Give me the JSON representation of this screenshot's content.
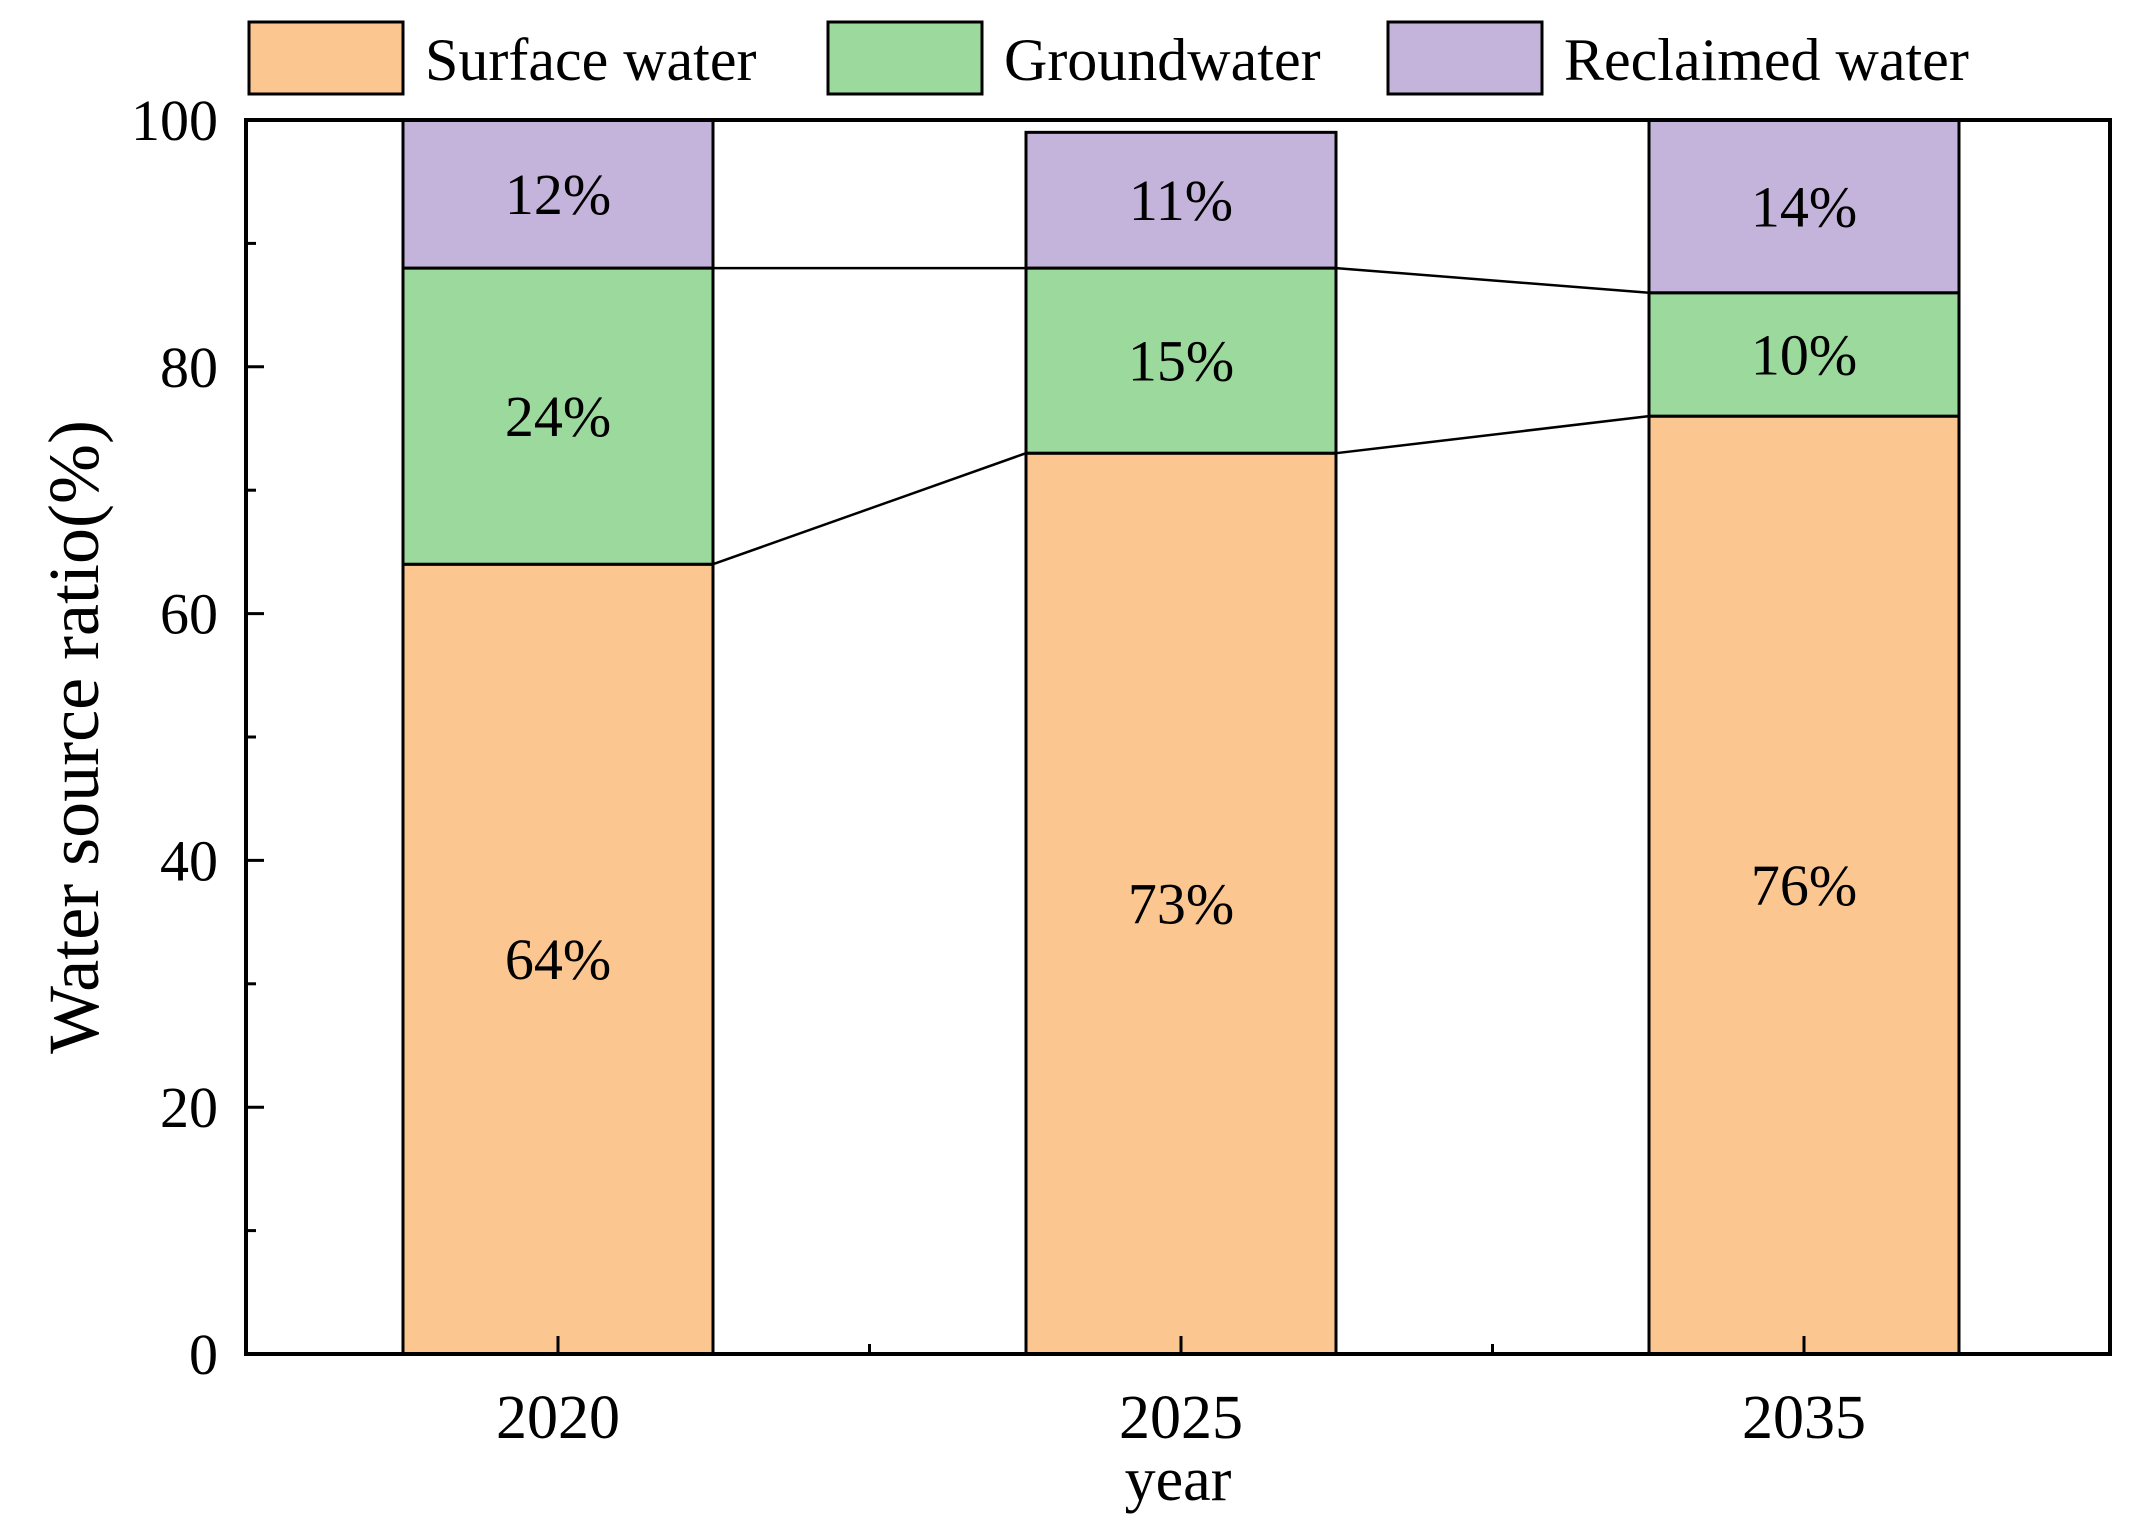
{
  "chart_data": {
    "type": "bar",
    "stacked": true,
    "categories": [
      "2020",
      "2025",
      "2035"
    ],
    "series": [
      {
        "name": "Surface water",
        "values": [
          64,
          73,
          76
        ],
        "labels": [
          "64%",
          "73%",
          "76%"
        ],
        "color": "#FCC691"
      },
      {
        "name": "Groundwater",
        "values": [
          24,
          15,
          10
        ],
        "labels": [
          "24%",
          "15%",
          "10%"
        ],
        "color": "#9CD99C"
      },
      {
        "name": "Reclaimed water",
        "values": [
          12,
          11,
          14
        ],
        "labels": [
          "12%",
          "11%",
          "14%"
        ],
        "color": "#C4B3DA"
      }
    ],
    "xlabel": "year",
    "ylabel": "Water source ratio(%)",
    "ylim": [
      0,
      100
    ],
    "yticks": [
      0,
      20,
      40,
      60,
      80,
      100
    ],
    "legend_position": "top",
    "connector_lines": true
  }
}
